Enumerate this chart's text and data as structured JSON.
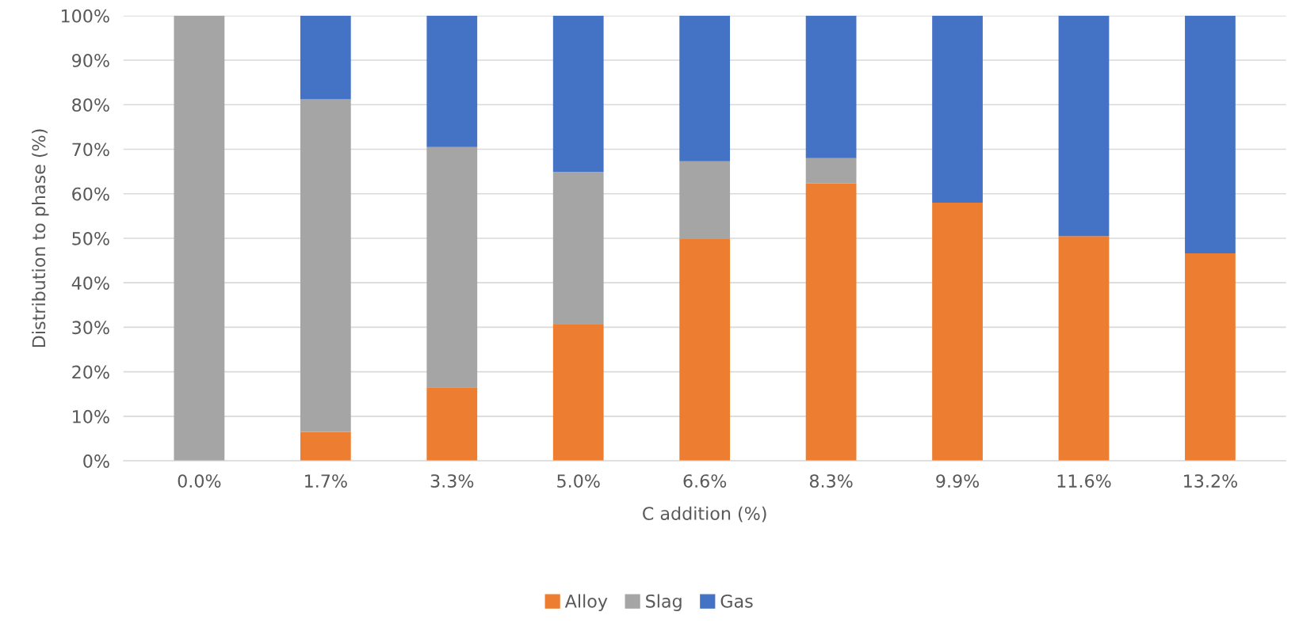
{
  "chart_data": {
    "type": "bar",
    "stacked": true,
    "xlabel": "C addition (%)",
    "ylabel": "Distribution to phase (%)",
    "categories": [
      "0.0%",
      "1.7%",
      "3.3%",
      "5.0%",
      "6.6%",
      "8.3%",
      "9.9%",
      "11.6%",
      "13.2%"
    ],
    "series": [
      {
        "name": "Alloy",
        "color": "#ed7d31",
        "values": [
          0,
          6.5,
          16.5,
          30.6,
          49.8,
          62.3,
          58.0,
          50.5,
          46.6
        ]
      },
      {
        "name": "Slag",
        "color": "#a5a5a5",
        "values": [
          100,
          74.7,
          54.0,
          34.3,
          17.5,
          5.7,
          0,
          0,
          0
        ]
      },
      {
        "name": "Gas",
        "color": "#4472c4",
        "values": [
          0,
          18.8,
          29.5,
          35.1,
          32.7,
          32.0,
          42.0,
          49.5,
          53.4
        ]
      }
    ],
    "ylim": [
      0,
      100
    ],
    "yticks": [
      {
        "value": 0,
        "label": "0%"
      },
      {
        "value": 10,
        "label": "10%"
      },
      {
        "value": 20,
        "label": "20%"
      },
      {
        "value": 30,
        "label": "30%"
      },
      {
        "value": 40,
        "label": "40%"
      },
      {
        "value": 50,
        "label": "50%"
      },
      {
        "value": 60,
        "label": "60%"
      },
      {
        "value": 70,
        "label": "70%"
      },
      {
        "value": 80,
        "label": "80%"
      },
      {
        "value": 90,
        "label": "90%"
      },
      {
        "value": 100,
        "label": "100%"
      }
    ],
    "grid": "y",
    "legend": "bottom"
  }
}
